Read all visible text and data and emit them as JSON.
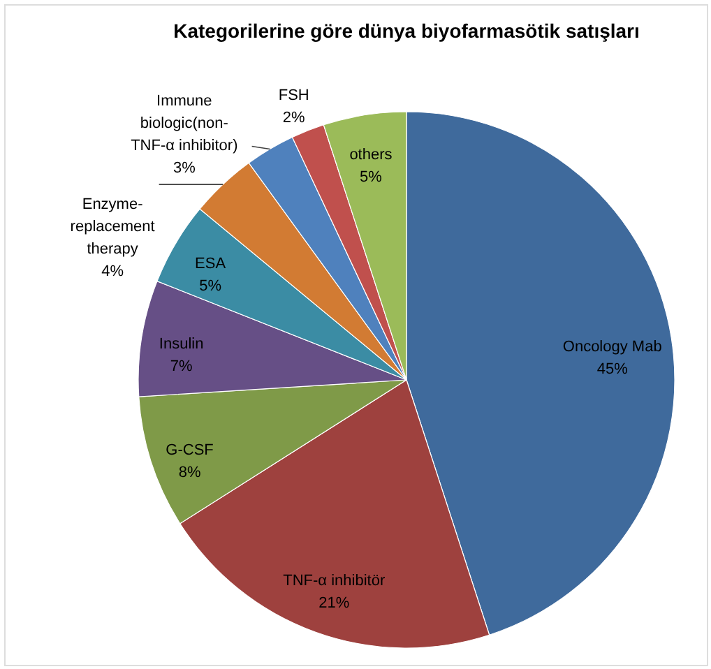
{
  "chart_data": {
    "type": "pie",
    "title": "Kategorilerine göre dünya biyofarmasötik satışları",
    "categories": [
      "Oncology Mab",
      "TNF-α inhibitör",
      "G-CSF",
      "Insulin",
      "ESA",
      "Enzyme-replacement therapy",
      "Immune biologic(non-TNF-α inhibitor)",
      "FSH",
      "others"
    ],
    "values": [
      45,
      21,
      8,
      7,
      5,
      4,
      3,
      2,
      5
    ],
    "colors": [
      "#3f6a9c",
      "#9e413e",
      "#7f9a48",
      "#664f86",
      "#3b8ca4",
      "#d27b33",
      "#4f81bd",
      "#c0504d",
      "#9bbb59"
    ],
    "value_labels": [
      "45%",
      "21%",
      "8%",
      "7%",
      "5%",
      "4%",
      "3%",
      "2%",
      "5%"
    ]
  }
}
